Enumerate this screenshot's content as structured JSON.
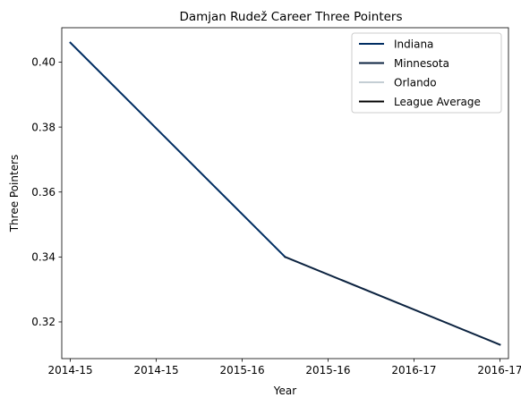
{
  "chart_data": {
    "type": "line",
    "title": "Damjan Rudež Career Three Pointers",
    "xlabel": "Year",
    "ylabel": "Three Pointers",
    "x_tick_labels": [
      "2014-15",
      "2014-15",
      "2015-16",
      "2015-16",
      "2016-17",
      "2016-17"
    ],
    "x_range": [
      -0.1,
      5.1
    ],
    "y_ticks": [
      0.32,
      0.34,
      0.36,
      0.38,
      0.4
    ],
    "y_tick_labels": [
      "0.32",
      "0.34",
      "0.36",
      "0.38",
      "0.40"
    ],
    "ylim": [
      0.3087,
      0.4106
    ],
    "grid": false,
    "legend_position": "top-right",
    "series": [
      {
        "name": "Indiana",
        "color": "#002d62",
        "x": [
          0,
          2.5
        ],
        "y": [
          0.406,
          0.34
        ]
      },
      {
        "name": "Minnesota",
        "color": "#0c2340",
        "x": [
          2.5,
          5
        ],
        "y": [
          0.34,
          0.313
        ]
      },
      {
        "name": "Orlando",
        "color": "#c4ced4",
        "x": [],
        "y": []
      },
      {
        "name": "League Average",
        "color": "#000000",
        "x": [],
        "y": []
      }
    ]
  }
}
